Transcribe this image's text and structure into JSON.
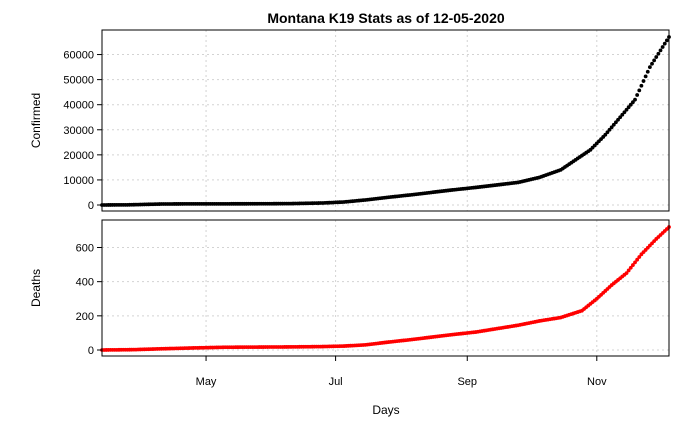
{
  "chart_data": {
    "type": "scatter",
    "title": "Montana K19 Stats as of 12-05-2020",
    "xlabel": "Days",
    "x_range": [
      "2020-03-13",
      "2020-12-05"
    ],
    "x_ticks": [
      {
        "date": "2020-05-01",
        "label": "May"
      },
      {
        "date": "2020-07-01",
        "label": "Jul"
      },
      {
        "date": "2020-09-01",
        "label": "Sep"
      },
      {
        "date": "2020-11-01",
        "label": "Nov"
      }
    ],
    "grid": true,
    "panels": [
      {
        "ylabel": "Confirmed",
        "ylim": [
          0,
          67000
        ],
        "yticks": [
          0,
          10000,
          20000,
          30000,
          40000,
          50000,
          60000
        ],
        "color": "#000000",
        "points": [
          [
            "2020-03-13",
            0
          ],
          [
            "2020-03-25",
            60
          ],
          [
            "2020-04-10",
            390
          ],
          [
            "2020-04-25",
            450
          ],
          [
            "2020-05-10",
            460
          ],
          [
            "2020-05-25",
            480
          ],
          [
            "2020-06-10",
            550
          ],
          [
            "2020-06-25",
            800
          ],
          [
            "2020-07-05",
            1200
          ],
          [
            "2020-07-15",
            2000
          ],
          [
            "2020-07-25",
            3000
          ],
          [
            "2020-08-05",
            4000
          ],
          [
            "2020-08-15",
            5000
          ],
          [
            "2020-08-25",
            6000
          ],
          [
            "2020-09-05",
            7000
          ],
          [
            "2020-09-15",
            8000
          ],
          [
            "2020-09-25",
            9000
          ],
          [
            "2020-10-05",
            11000
          ],
          [
            "2020-10-15",
            14000
          ],
          [
            "2020-10-22",
            18000
          ],
          [
            "2020-10-29",
            22000
          ],
          [
            "2020-11-05",
            28000
          ],
          [
            "2020-11-12",
            35000
          ],
          [
            "2020-11-19",
            42000
          ],
          [
            "2020-11-26",
            55000
          ],
          [
            "2020-12-05",
            67000
          ]
        ]
      },
      {
        "ylabel": "Deaths",
        "ylim": [
          0,
          720
        ],
        "yticks": [
          0,
          200,
          400,
          600
        ],
        "color": "#ff0000",
        "points": [
          [
            "2020-03-13",
            0
          ],
          [
            "2020-03-28",
            2
          ],
          [
            "2020-04-10",
            7
          ],
          [
            "2020-04-25",
            12
          ],
          [
            "2020-05-10",
            16
          ],
          [
            "2020-05-25",
            17
          ],
          [
            "2020-06-10",
            18
          ],
          [
            "2020-06-25",
            20
          ],
          [
            "2020-07-05",
            23
          ],
          [
            "2020-07-15",
            30
          ],
          [
            "2020-07-25",
            45
          ],
          [
            "2020-08-05",
            60
          ],
          [
            "2020-08-15",
            75
          ],
          [
            "2020-08-25",
            90
          ],
          [
            "2020-09-05",
            105
          ],
          [
            "2020-09-15",
            125
          ],
          [
            "2020-09-25",
            145
          ],
          [
            "2020-10-05",
            170
          ],
          [
            "2020-10-15",
            190
          ],
          [
            "2020-10-25",
            230
          ],
          [
            "2020-11-01",
            300
          ],
          [
            "2020-11-08",
            380
          ],
          [
            "2020-11-15",
            450
          ],
          [
            "2020-11-22",
            560
          ],
          [
            "2020-11-29",
            650
          ],
          [
            "2020-12-05",
            720
          ]
        ]
      }
    ]
  }
}
